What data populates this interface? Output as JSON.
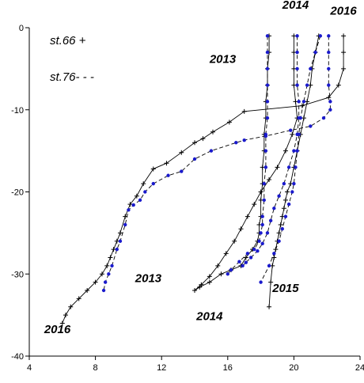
{
  "chart_data": {
    "type": "line",
    "xlim": [
      4,
      24
    ],
    "ylim": [
      -40,
      0
    ],
    "x_ticks": [
      4,
      8,
      12,
      16,
      20,
      24
    ],
    "y_ticks": [
      0,
      -10,
      -20,
      -30,
      -40
    ],
    "x_tick_labels": [
      "4",
      "8",
      "12",
      "16",
      "20",
      "24"
    ],
    "y_tick_labels": [
      "0",
      "-10",
      "-20",
      "-30",
      "-40"
    ],
    "grid": false,
    "legend": [
      {
        "label": "st.66 +"
      },
      {
        "label": "st.76- - -"
      }
    ],
    "annotations": [
      {
        "text": "2014",
        "x": 20.1,
        "y": 2.3
      },
      {
        "text": "2016",
        "x": 23.0,
        "y": 1.6
      },
      {
        "text": "2013",
        "x": 15.7,
        "y": -4.3
      },
      {
        "text": "2013",
        "x": 11.2,
        "y": -31.0
      },
      {
        "text": "2015",
        "x": 19.5,
        "y": -32.2
      },
      {
        "text": "2014",
        "x": 14.9,
        "y": -35.6
      },
      {
        "text": "2016",
        "x": 5.7,
        "y": -37.2
      }
    ],
    "series": [
      {
        "station": "st.66",
        "year": "2013",
        "color": "#000000",
        "dashed": false,
        "marker": "plus",
        "x": [
          18.5,
          18.5,
          18.4,
          18.4,
          18.3,
          18.3,
          18.2,
          18.2,
          18.1,
          18.1,
          18.0,
          18.0,
          17.9,
          17.9,
          17.8,
          17.5,
          17.1,
          16.8,
          16.2,
          15.6,
          14.9,
          14.3,
          14.0
        ],
        "y": [
          -1,
          -3,
          -5,
          -7,
          -9,
          -11,
          -13,
          -15,
          -17,
          -19,
          -21,
          -23,
          -24,
          -25,
          -26,
          -27,
          -28,
          -29,
          -29.5,
          -30,
          -31,
          -31.6,
          -32
        ]
      },
      {
        "station": "st.66",
        "year": "2014",
        "color": "#000000",
        "dashed": false,
        "marker": "plus",
        "x": [
          20.0,
          20.0,
          20.0,
          20.0,
          20.1,
          20.2,
          19.9,
          19.5,
          19.0,
          18.5,
          18.0,
          17.6,
          17.2,
          16.8,
          16.4,
          15.9,
          15.4,
          14.9,
          14.4,
          14.0
        ],
        "y": [
          -1,
          -3,
          -5,
          -7,
          -9,
          -11,
          -13,
          -15,
          -17,
          -18.5,
          -20,
          -21.5,
          -23,
          -24.5,
          -26,
          -27.5,
          -29,
          -30.3,
          -31.3,
          -32
        ]
      },
      {
        "station": "st.66",
        "year": "2015",
        "color": "#000000",
        "dashed": false,
        "marker": "plus",
        "x": [
          21.5,
          21.3,
          21.1,
          21.0,
          20.8,
          20.6,
          20.4,
          20.2,
          20.0,
          19.8,
          19.6,
          19.5,
          19.4,
          19.3,
          19.2,
          19.1,
          19.0,
          18.9,
          18.8,
          18.7,
          18.6,
          18.5
        ],
        "y": [
          -1,
          -3,
          -5,
          -7,
          -9,
          -11,
          -13,
          -15,
          -17,
          -19,
          -20,
          -21,
          -22,
          -23,
          -24,
          -25,
          -26,
          -27,
          -28,
          -29,
          -31,
          -34
        ]
      },
      {
        "station": "st.66",
        "year": "2016",
        "color": "#000000",
        "dashed": false,
        "marker": "plus",
        "x": [
          23.0,
          23.0,
          23.0,
          22.7,
          22.1,
          20.5,
          17.0,
          16.1,
          15.1,
          14.5,
          14.0,
          13.2,
          12.3,
          11.5,
          10.9,
          10.5,
          10.1,
          9.8,
          9.5,
          9.3,
          9.1,
          8.9,
          8.7,
          8.4,
          8.0,
          7.5,
          7.0,
          6.5,
          6.2,
          6.0
        ],
        "y": [
          -1,
          -3,
          -5,
          -7,
          -8.5,
          -9.5,
          -10.2,
          -11.5,
          -12.7,
          -13.5,
          -14,
          -15.2,
          -16.5,
          -17.2,
          -19,
          -20.5,
          -21.5,
          -23,
          -25,
          -26,
          -27,
          -28,
          -29,
          -30,
          -31,
          -32,
          -33,
          -34,
          -35,
          -36
        ]
      },
      {
        "station": "st.76",
        "year": "2013",
        "color": "#1a1acc",
        "dashed": true,
        "marker": "dot",
        "x": [
          18.4,
          18.4,
          18.4,
          18.4,
          18.4,
          18.4,
          18.3,
          18.3,
          18.3,
          18.2,
          18.2,
          18.1,
          18.1,
          18.0,
          17.9,
          17.6,
          17.2,
          16.7,
          16.2,
          16.0
        ],
        "y": [
          -1,
          -3,
          -5,
          -7,
          -9,
          -11,
          -13,
          -15,
          -17,
          -19,
          -21,
          -23,
          -24,
          -25,
          -26,
          -27,
          -27.5,
          -28.5,
          -29.5,
          -30
        ]
      },
      {
        "station": "st.76",
        "year": "2014",
        "color": "#1a1acc",
        "dashed": true,
        "marker": "dot",
        "x": [
          20.2,
          20.2,
          20.2,
          20.2,
          20.3,
          20.3,
          20.2,
          20.0,
          19.7,
          19.4,
          19.1,
          18.8,
          18.6,
          18.4,
          18.1,
          17.8,
          17.4,
          17.1,
          16.9
        ],
        "y": [
          -1,
          -3,
          -5,
          -7,
          -9,
          -11,
          -13,
          -15,
          -17,
          -19,
          -20.5,
          -22,
          -23.5,
          -25,
          -26.3,
          -27.2,
          -28,
          -28.6,
          -29
        ]
      },
      {
        "station": "st.76",
        "year": "2015",
        "color": "#1a1acc",
        "dashed": true,
        "marker": "dot",
        "x": [
          21.6,
          21.3,
          21.0,
          20.8,
          20.6,
          20.4,
          20.3,
          20.2,
          20.1,
          20.0,
          19.9,
          19.7,
          19.5,
          19.3,
          19.1,
          18.8,
          18.5,
          18.0
        ],
        "y": [
          -1,
          -3,
          -5,
          -7,
          -9,
          -11,
          -13,
          -15,
          -17,
          -19,
          -20,
          -21.5,
          -23,
          -24.5,
          -26,
          -27.5,
          -29,
          -31
        ]
      },
      {
        "station": "st.76",
        "year": "2016",
        "color": "#1a1acc",
        "dashed": true,
        "marker": "dot",
        "x": [
          22.1,
          22.1,
          22.1,
          22.1,
          22.2,
          22.2,
          21.8,
          21.0,
          19.8,
          18.3,
          17.0,
          16.5,
          15.0,
          14.0,
          13.2,
          12.4,
          11.5,
          11.0,
          10.7,
          10.3,
          10.0,
          9.8,
          9.5,
          9.3,
          9.0,
          8.8,
          8.6,
          8.5
        ],
        "y": [
          -1,
          -3,
          -5,
          -7,
          -9,
          -10,
          -11,
          -12,
          -12.5,
          -13.2,
          -13.7,
          -14,
          -15,
          -16,
          -17.5,
          -18,
          -19,
          -20,
          -21,
          -21.6,
          -22.2,
          -24,
          -26,
          -27,
          -29,
          -30,
          -31,
          -32
        ]
      }
    ]
  }
}
